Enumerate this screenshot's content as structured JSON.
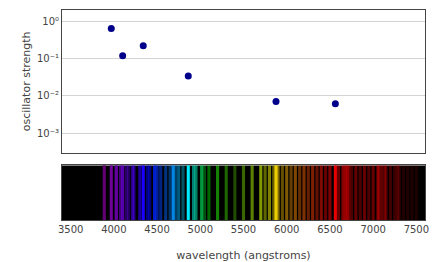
{
  "chart_data": [
    {
      "type": "scatter",
      "x": [
        3970,
        4102,
        4340,
        4861,
        5876,
        6563
      ],
      "values": [
        0.64,
        0.12,
        0.22,
        0.034,
        0.0071,
        0.0062
      ],
      "color": "#00008B",
      "ylabel": "oscillator strength",
      "xlim": [
        3400,
        7600
      ],
      "xticks": [
        3500,
        4000,
        4500,
        5000,
        5500,
        6000,
        6500,
        7000,
        7500
      ],
      "ylim": [
        0.0003,
        2.0
      ],
      "yticks": [
        {
          "value": 0.001,
          "label": "10⁻³"
        },
        {
          "value": 0.01,
          "label": "10⁻²"
        },
        {
          "value": 0.1,
          "label": "10⁻¹"
        },
        {
          "value": 1,
          "label": "10⁰"
        }
      ],
      "log": "y",
      "grid": "y",
      "tick_labels": "y"
    },
    {
      "type": "spectrum",
      "x": [
        3889,
        3970,
        4026,
        4102,
        4144,
        4233,
        4340,
        4388,
        4471,
        4542,
        4686,
        4713,
        4861,
        4922,
        5016,
        5048,
        5876,
        6563,
        6678,
        6717,
        7065,
        7136,
        7281,
        4030,
        4077,
        4168,
        4215,
        4300,
        4415,
        4500,
        4600,
        4650,
        4750,
        4800,
        4950,
        5100,
        5200,
        5300,
        5400,
        5500,
        5600,
        5700,
        5750,
        5800,
        5850,
        5900,
        5950,
        6000,
        6050,
        6100,
        6150,
        6200,
        6250,
        6300,
        6350,
        6400,
        6450,
        6500,
        6600,
        6650,
        6700,
        6750,
        6800,
        6850,
        6900,
        6950,
        7000,
        7050,
        7100,
        7150,
        7200,
        7250,
        7300,
        7350,
        7400,
        7450,
        7500
      ],
      "values": [
        1.0,
        1.0,
        0.6,
        0.8,
        0.4,
        0.5,
        1.0,
        0.5,
        0.8,
        0.5,
        0.9,
        0.4,
        1.0,
        0.5,
        0.6,
        0.3,
        0.9,
        0.9,
        0.5,
        0.4,
        0.5,
        0.4,
        0.3,
        0.7,
        0.6,
        0.4,
        0.5,
        0.6,
        0.5,
        0.6,
        0.5,
        0.4,
        0.5,
        0.4,
        0.5,
        0.4,
        0.5,
        0.4,
        0.3,
        0.4,
        0.5,
        0.6,
        0.4,
        0.5,
        0.4,
        0.5,
        0.4,
        0.5,
        0.4,
        0.5,
        0.4,
        0.5,
        0.4,
        0.5,
        0.4,
        0.5,
        0.4,
        0.5,
        0.4,
        0.5,
        0.4,
        0.3,
        0.4,
        0.3,
        0.4,
        0.3,
        0.4,
        0.3,
        0.4,
        0.3,
        0.3,
        0.3,
        0.3,
        0.2,
        0.2,
        0.2,
        0.2
      ],
      "xlabel": "wavelength (angstroms)",
      "xlim": [
        3400,
        7600
      ],
      "xticks": [
        3500,
        4000,
        4500,
        5000,
        5500,
        6000,
        6500,
        7000,
        7500
      ],
      "grid": false,
      "tick_labels": "x"
    }
  ]
}
